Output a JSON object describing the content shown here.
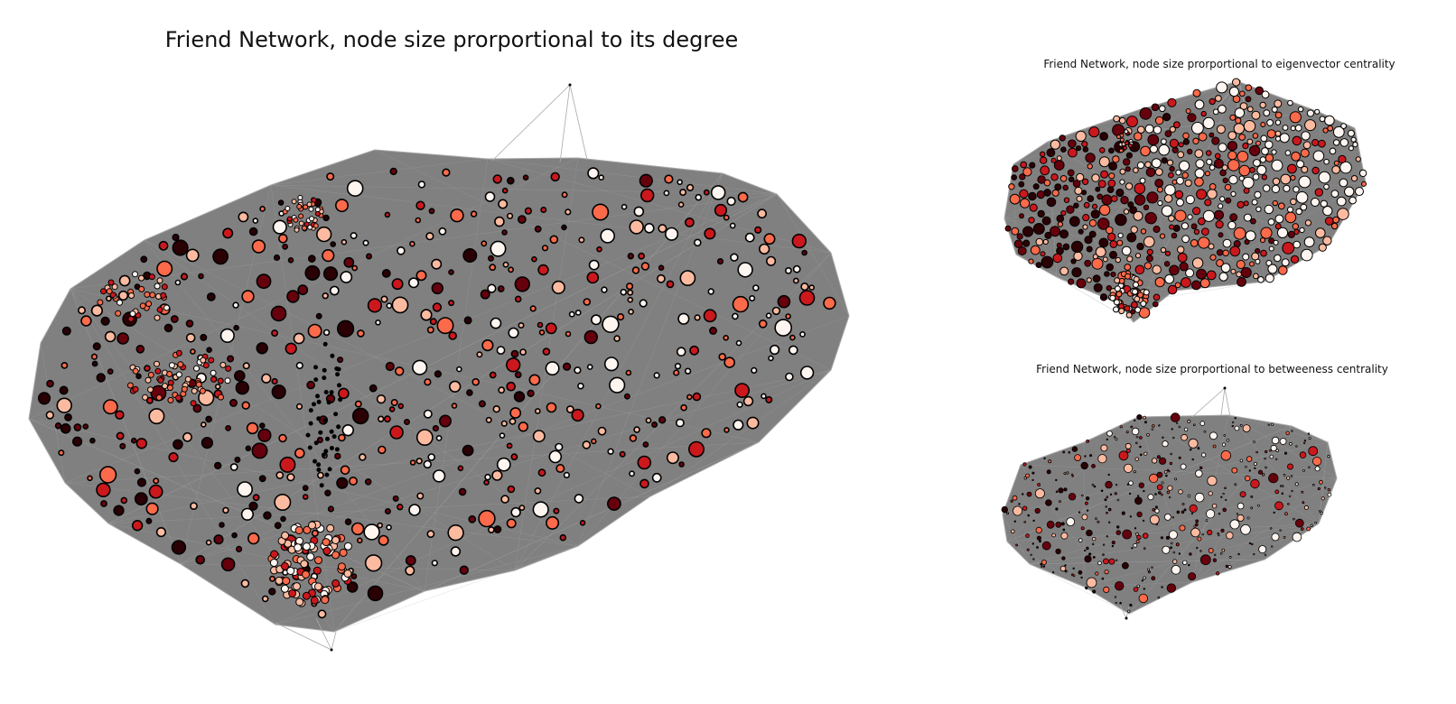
{
  "titles": {
    "main": "Friend Network, node size prorportional to its degree",
    "eigenvector": "Friend Network, node size prorportional to eigenvector centrality",
    "betweenness": "Friend Network, node size prorportional to betweeness centrality"
  },
  "colors": {
    "background": "#ffffff",
    "edge_mass": "#808080",
    "edge_line": "#a8a8a8",
    "node_outline": "#000000",
    "node_palette": [
      "#fff5f0",
      "#fcbba1",
      "#fb6a4a",
      "#cb181d",
      "#67000d",
      "#2a0004"
    ]
  },
  "legend": "none",
  "axes": "hidden"
}
